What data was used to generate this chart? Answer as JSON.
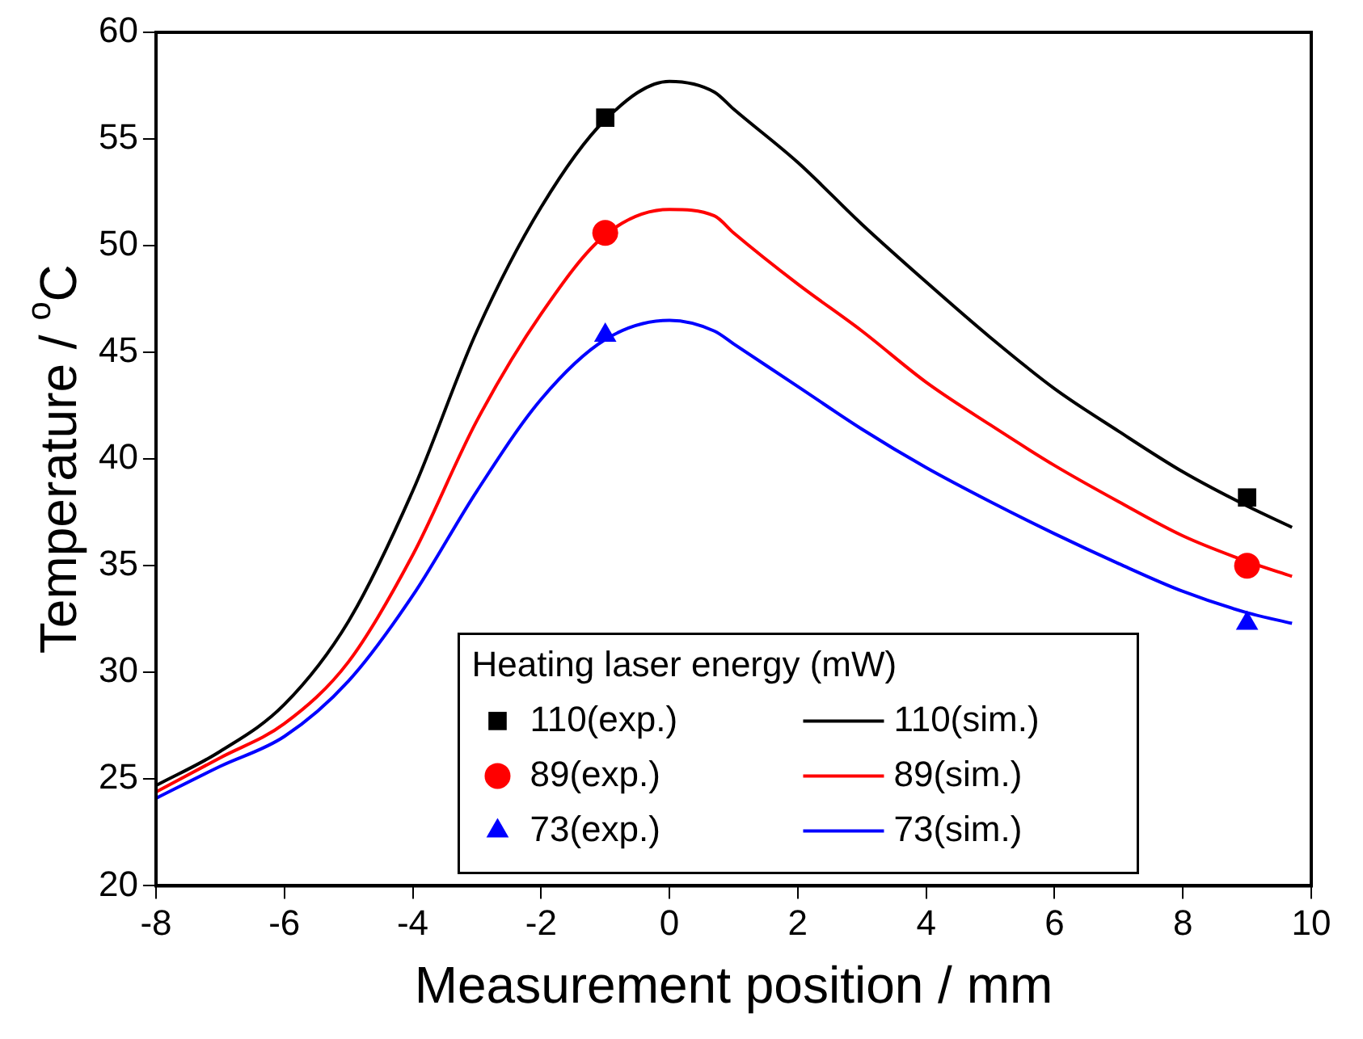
{
  "chart_data": {
    "type": "line",
    "xlabel": "Measurement position / mm",
    "ylabel": "Temperature / $^{o}$C",
    "legend_title": "Heating laser energy (mW)",
    "legend": "bottom",
    "grid": false,
    "xlim": [
      -8,
      10
    ],
    "xticks": [
      -8,
      -6,
      -4,
      -2,
      0,
      2,
      4,
      6,
      8,
      10
    ],
    "ylim": [
      20,
      60
    ],
    "yticks": [
      20,
      25,
      30,
      35,
      40,
      45,
      50,
      55,
      60
    ],
    "series": [
      {
        "name": "110(exp.)",
        "type": "scatter",
        "marker": "square",
        "color": "#000000",
        "x": [
          -1,
          9
        ],
        "values": [
          56.0,
          38.2
        ]
      },
      {
        "name": "110(sim.)",
        "color": "#000000",
        "x": [
          -8,
          -7,
          -6,
          -5,
          -4,
          -3,
          -2,
          -1,
          0,
          0.7,
          1,
          2,
          3,
          4,
          5,
          6,
          7,
          8,
          9,
          9.7
        ],
        "values": [
          24.7,
          26.3,
          28.5,
          32.4,
          38.5,
          46.0,
          51.8,
          55.9,
          57.7,
          57.2,
          56.4,
          53.9,
          51.0,
          48.3,
          45.7,
          43.3,
          41.3,
          39.4,
          37.8,
          36.8
        ]
      },
      {
        "name": "89(exp.)",
        "type": "scatter",
        "marker": "circle",
        "color": "#ff0000",
        "x": [
          -1,
          9
        ],
        "values": [
          50.6,
          35.0
        ]
      },
      {
        "name": "89(sim.)",
        "color": "#ff0000",
        "x": [
          -8,
          -7,
          -6,
          -5,
          -4,
          -3,
          -2,
          -1,
          0,
          0.7,
          1,
          2,
          3,
          4,
          5,
          6,
          7,
          8,
          9,
          9.7
        ],
        "values": [
          24.4,
          26.0,
          27.6,
          30.5,
          35.5,
          41.8,
          46.8,
          50.5,
          51.7,
          51.4,
          50.6,
          48.2,
          46.0,
          43.6,
          41.6,
          39.7,
          38.0,
          36.4,
          35.2,
          34.5
        ]
      },
      {
        "name": "73(exp.)",
        "type": "scatter",
        "marker": "triangle",
        "color": "#0000ff",
        "x": [
          -1,
          9
        ],
        "values": [
          45.8,
          32.3
        ]
      },
      {
        "name": "73(sim.)",
        "color": "#0000ff",
        "x": [
          -8,
          -7,
          -6,
          -5,
          -4,
          -3,
          -2,
          -1,
          0,
          0.7,
          1,
          2,
          3,
          4,
          5,
          6,
          7,
          8,
          9,
          9.7
        ],
        "values": [
          24.1,
          25.6,
          27.0,
          29.6,
          33.6,
          38.5,
          42.8,
          45.6,
          46.5,
          46.0,
          45.4,
          43.4,
          41.4,
          39.6,
          38.0,
          36.5,
          35.1,
          33.8,
          32.8,
          32.3
        ]
      }
    ]
  }
}
